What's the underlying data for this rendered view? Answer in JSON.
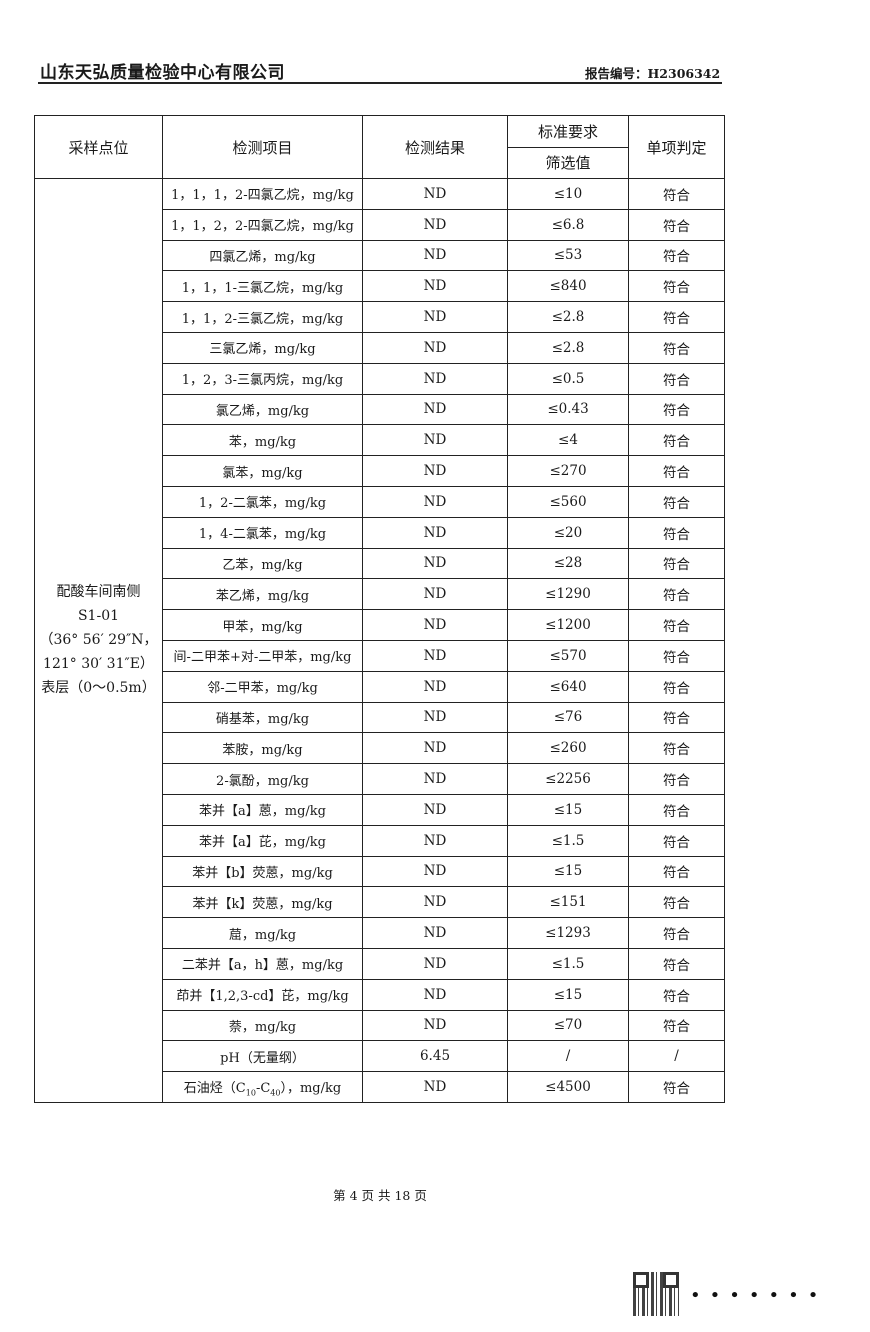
{
  "header": {
    "company": "山东天弘质量检验中心有限公司",
    "report_no": "报告编号：H2306342"
  },
  "table": {
    "headers": {
      "site": "采样点位",
      "item": "检测项目",
      "result": "检测结果",
      "standard": "标准要求",
      "screening": "筛选值",
      "verdict": "单项判定"
    },
    "site": [
      "配酸车间南侧",
      "S1-01",
      "（36° 56′ 29″N，",
      "121° 30′ 31″E）",
      "表层（0～0.5m）"
    ],
    "rows": [
      {
        "item": "1，1，1，2-四氯乙烷，mg/kg",
        "result": "ND",
        "limit": "≤10",
        "verdict": "符合"
      },
      {
        "item": "1，1，2，2-四氯乙烷，mg/kg",
        "result": "ND",
        "limit": "≤6.8",
        "verdict": "符合"
      },
      {
        "item": "四氯乙烯，mg/kg",
        "result": "ND",
        "limit": "≤53",
        "verdict": "符合"
      },
      {
        "item": "1，1，1-三氯乙烷，mg/kg",
        "result": "ND",
        "limit": "≤840",
        "verdict": "符合"
      },
      {
        "item": "1，1，2-三氯乙烷，mg/kg",
        "result": "ND",
        "limit": "≤2.8",
        "verdict": "符合"
      },
      {
        "item": "三氯乙烯，mg/kg",
        "result": "ND",
        "limit": "≤2.8",
        "verdict": "符合"
      },
      {
        "item": "1，2，3-三氯丙烷，mg/kg",
        "result": "ND",
        "limit": "≤0.5",
        "verdict": "符合"
      },
      {
        "item": "氯乙烯，mg/kg",
        "result": "ND",
        "limit": "≤0.43",
        "verdict": "符合"
      },
      {
        "item": "苯，mg/kg",
        "result": "ND",
        "limit": "≤4",
        "verdict": "符合"
      },
      {
        "item": "氯苯，mg/kg",
        "result": "ND",
        "limit": "≤270",
        "verdict": "符合"
      },
      {
        "item": "1，2-二氯苯，mg/kg",
        "result": "ND",
        "limit": "≤560",
        "verdict": "符合"
      },
      {
        "item": "1，4-二氯苯，mg/kg",
        "result": "ND",
        "limit": "≤20",
        "verdict": "符合"
      },
      {
        "item": "乙苯，mg/kg",
        "result": "ND",
        "limit": "≤28",
        "verdict": "符合"
      },
      {
        "item": "苯乙烯，mg/kg",
        "result": "ND",
        "limit": "≤1290",
        "verdict": "符合"
      },
      {
        "item": "甲苯，mg/kg",
        "result": "ND",
        "limit": "≤1200",
        "verdict": "符合"
      },
      {
        "item": "间-二甲苯+对-二甲苯，mg/kg",
        "result": "ND",
        "limit": "≤570",
        "verdict": "符合"
      },
      {
        "item": "邻-二甲苯，mg/kg",
        "result": "ND",
        "limit": "≤640",
        "verdict": "符合"
      },
      {
        "item": "硝基苯，mg/kg",
        "result": "ND",
        "limit": "≤76",
        "verdict": "符合"
      },
      {
        "item": "苯胺，mg/kg",
        "result": "ND",
        "limit": "≤260",
        "verdict": "符合"
      },
      {
        "item": "2-氯酚，mg/kg",
        "result": "ND",
        "limit": "≤2256",
        "verdict": "符合"
      },
      {
        "item": "苯并【a】蒽，mg/kg",
        "result": "ND",
        "limit": "≤15",
        "verdict": "符合"
      },
      {
        "item": "苯并【a】芘，mg/kg",
        "result": "ND",
        "limit": "≤1.5",
        "verdict": "符合"
      },
      {
        "item": "苯并【b】荧蒽，mg/kg",
        "result": "ND",
        "limit": "≤15",
        "verdict": "符合"
      },
      {
        "item": "苯并【k】荧蒽，mg/kg",
        "result": "ND",
        "limit": "≤151",
        "verdict": "符合"
      },
      {
        "item": "䓛，mg/kg",
        "result": "ND",
        "limit": "≤1293",
        "verdict": "符合"
      },
      {
        "item": "二苯并【a，h】蒽，mg/kg",
        "result": "ND",
        "limit": "≤1.5",
        "verdict": "符合"
      },
      {
        "item": "茚并【1,2,3-cd】芘，mg/kg",
        "result": "ND",
        "limit": "≤15",
        "verdict": "符合"
      },
      {
        "item": "萘，mg/kg",
        "result": "ND",
        "limit": "≤70",
        "verdict": "符合"
      },
      {
        "item": "pH（无量纲）",
        "result": "6.45",
        "limit": "/",
        "verdict": "/"
      }
    ],
    "last_row": {
      "item_prefix": "石油烃（C",
      "sub1": "10",
      "item_mid": "-C",
      "sub2": "40",
      "item_suffix": "），mg/kg",
      "result": "ND",
      "limit": "≤4500",
      "verdict": "符合"
    }
  },
  "footer": {
    "page": "第 4 页 共 18 页"
  }
}
